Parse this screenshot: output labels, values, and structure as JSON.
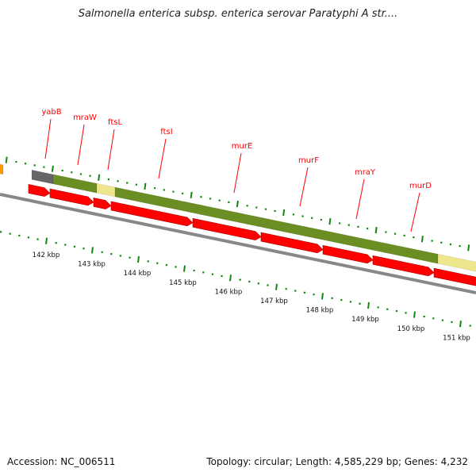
{
  "title": "Salmonella enterica subsp. enterica serovar Paratyphi A str....",
  "accession": "Accession: NC_006511",
  "topology": "Topology: circular; Length: 4,585,229 bp; Genes: 4,232",
  "colors": {
    "gene_label": "#ff0000",
    "cds": "#ff0000",
    "green_band": "#6b8e23",
    "yellow_band": "#eee68c",
    "gray_band": "#666666",
    "tick": "#118811",
    "backbone": "#888888"
  },
  "genes": [
    {
      "name": "yabB"
    },
    {
      "name": "mraW"
    },
    {
      "name": "ftsL"
    },
    {
      "name": "ftsI"
    },
    {
      "name": "murE"
    },
    {
      "name": "murF"
    },
    {
      "name": "mraY"
    },
    {
      "name": "murD"
    }
  ],
  "scale_labels": [
    "142 kbp",
    "143 kbp",
    "144 kbp",
    "145 kbp",
    "146 kbp",
    "147 kbp",
    "148 kbp",
    "149 kbp",
    "150 kbp",
    "151 kbp"
  ]
}
